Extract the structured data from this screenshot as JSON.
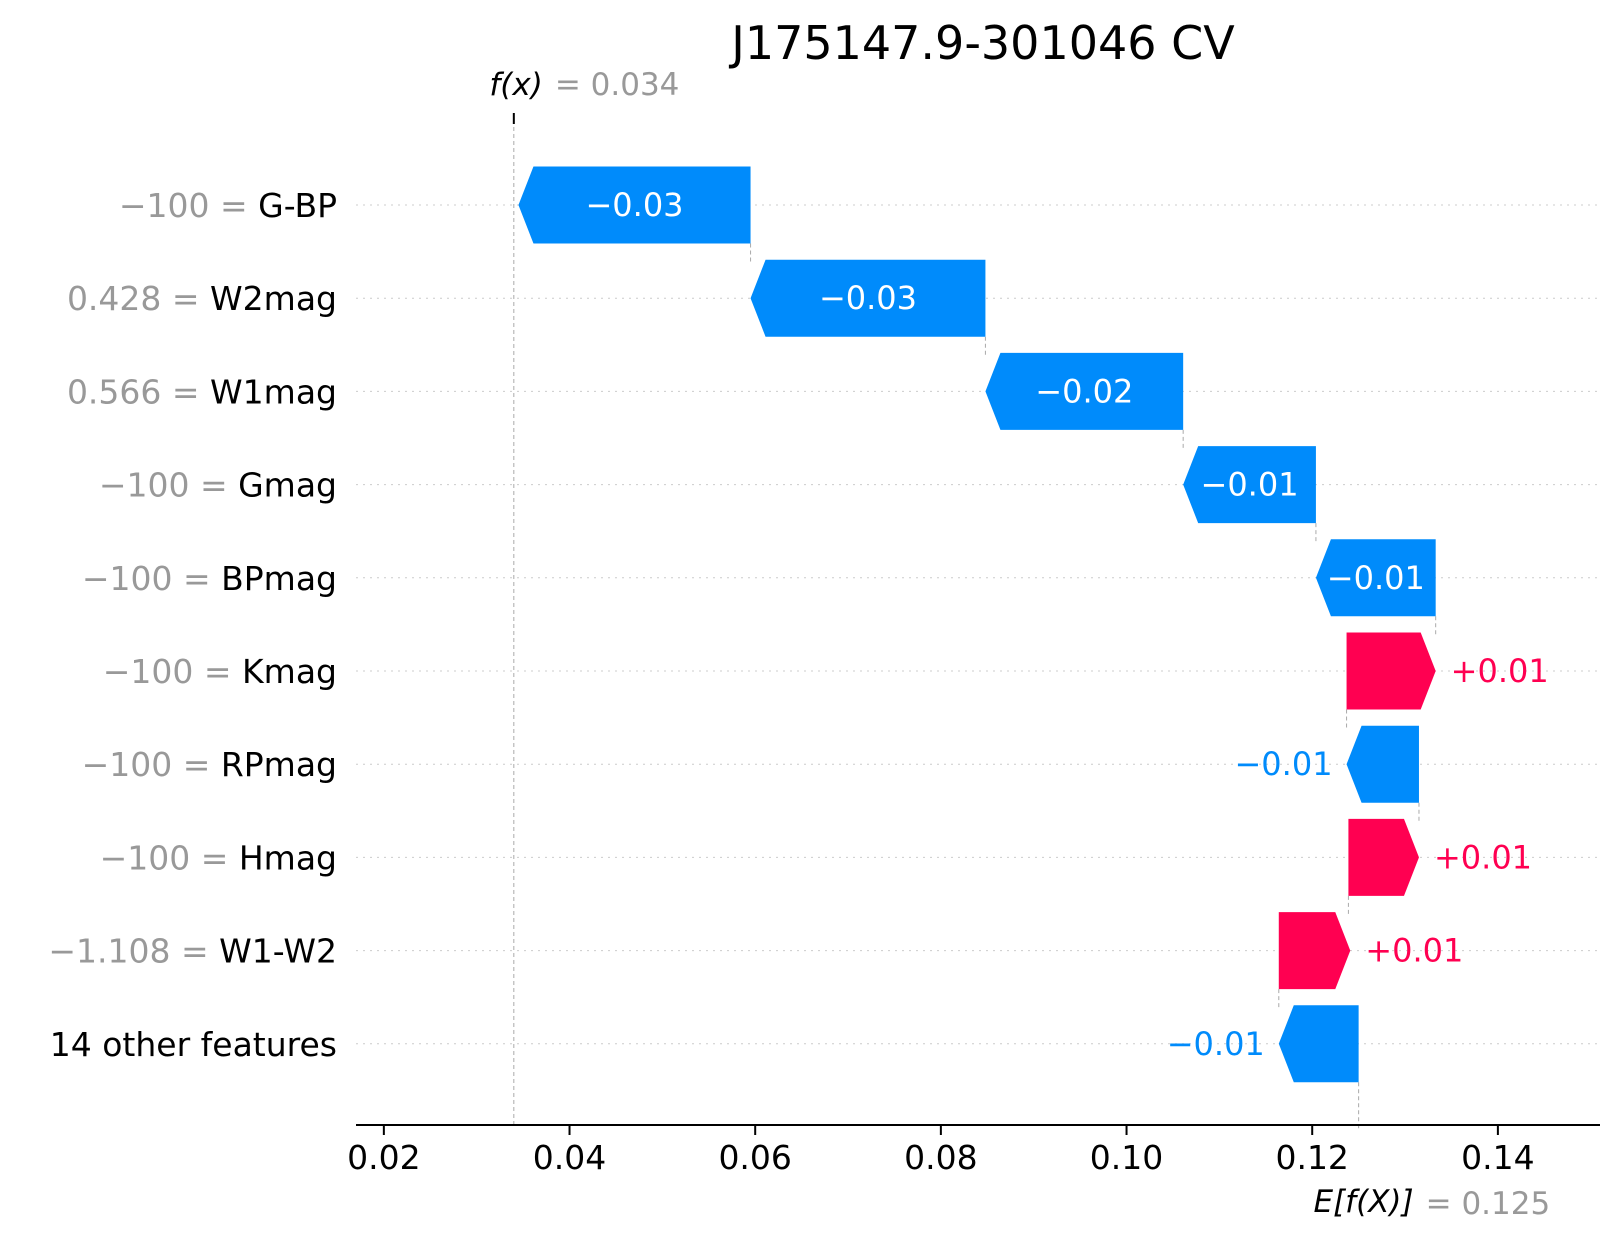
{
  "chart_data": {
    "type": "waterfall",
    "title": "J175147.9-301046 CV",
    "fx_label": "f(x)",
    "fx_value_text": "= 0.034",
    "fx_value": 0.034,
    "efx_label": "E[f(X)]",
    "efx_value_text": "= 0.125",
    "efx_value": 0.125,
    "xlim": [
      0.017,
      0.151
    ],
    "xticks": [
      0.02,
      0.04,
      0.06,
      0.08,
      0.1,
      0.12,
      0.14
    ],
    "xtick_labels": [
      "0.02",
      "0.04",
      "0.06",
      "0.08",
      "0.10",
      "0.12",
      "0.14"
    ],
    "grid": "horizontal dotted per feature row",
    "colors": {
      "positive": "#ff0051",
      "negative": "#008bfb",
      "feature_value": "#999999",
      "text": "#000000"
    },
    "features": [
      {
        "value_text": "−100 =",
        "name": "G-BP",
        "start": 0.0595,
        "end": 0.0345,
        "label": "−0.03"
      },
      {
        "value_text": "0.428 =",
        "name": "W2mag",
        "start": 0.0848,
        "end": 0.0595,
        "label": "−0.03"
      },
      {
        "value_text": "0.566 =",
        "name": "W1mag",
        "start": 0.1061,
        "end": 0.0848,
        "label": "−0.02"
      },
      {
        "value_text": "−100 =",
        "name": "Gmag",
        "start": 0.1204,
        "end": 0.1061,
        "label": "−0.01"
      },
      {
        "value_text": "−100 =",
        "name": "BPmag",
        "start": 0.1333,
        "end": 0.1204,
        "label": "−0.01"
      },
      {
        "value_text": "−100 =",
        "name": "Kmag",
        "start": 0.1237,
        "end": 0.1333,
        "label": "+0.01"
      },
      {
        "value_text": "−100 =",
        "name": "RPmag",
        "start": 0.1315,
        "end": 0.1237,
        "label": "−0.01"
      },
      {
        "value_text": "−100 =",
        "name": "Hmag",
        "start": 0.1239,
        "end": 0.1315,
        "label": "+0.01"
      },
      {
        "value_text": "−1.108 =",
        "name": "W1-W2",
        "start": 0.1164,
        "end": 0.1241,
        "label": "+0.01"
      },
      {
        "value_text": "",
        "name": "14 other features",
        "start": 0.125,
        "end": 0.1164,
        "label": "−0.01"
      }
    ]
  }
}
